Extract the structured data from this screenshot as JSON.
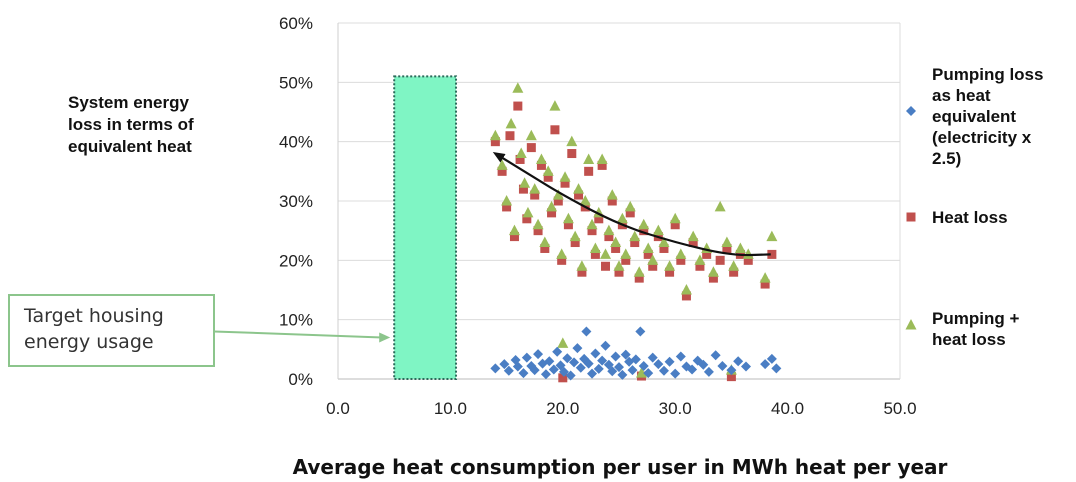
{
  "chart_data": {
    "type": "scatter",
    "title": "",
    "xlabel": "Average heat consumption per user in MWh heat per year",
    "ylabel_lines": [
      "System energy",
      "loss in terms of",
      "equivalent heat"
    ],
    "xlim": [
      0,
      50
    ],
    "ylim": [
      0,
      60
    ],
    "x_ticks": [
      "0.0",
      "10.0",
      "20.0",
      "30.0",
      "40.0",
      "50.0"
    ],
    "y_ticks": [
      "0%",
      "10%",
      "20%",
      "30%",
      "40%",
      "50%",
      "60%"
    ],
    "grid": true,
    "legend_position": "right",
    "legend": [
      {
        "lines": [
          "Pumping loss",
          "as heat",
          "equivalent",
          "(electricity x",
          "2.5)"
        ],
        "color": "#4a7ec4",
        "marker": "diamond"
      },
      {
        "lines": [
          "Heat loss"
        ],
        "color": "#c0504d",
        "marker": "square"
      },
      {
        "lines": [
          "Pumping +",
          "heat loss"
        ],
        "color": "#9bbb59",
        "marker": "triangle"
      }
    ],
    "target_band": {
      "x_range": [
        5,
        10.5
      ],
      "y_range": [
        0,
        51
      ],
      "color": "#7ff5c4"
    },
    "annotation": {
      "lines": [
        "Target housing",
        "energy usage"
      ],
      "points_to": [
        5,
        7
      ]
    },
    "trend_arrow": {
      "color": "#111111",
      "points": [
        [
          38.5,
          21
        ],
        [
          35,
          20.8
        ],
        [
          30,
          23
        ],
        [
          25,
          26
        ],
        [
          20,
          31
        ],
        [
          17,
          34.5
        ],
        [
          14,
          38
        ]
      ]
    },
    "series": [
      {
        "name": "Pumping loss as heat equivalent (electricity x 2.5)",
        "marker": "diamond",
        "color": "#4a7ec4",
        "points": [
          [
            14,
            1.8
          ],
          [
            14.8,
            2.5
          ],
          [
            15.2,
            1.4
          ],
          [
            15.8,
            3.2
          ],
          [
            16,
            2.1
          ],
          [
            16.5,
            1
          ],
          [
            16.8,
            3.6
          ],
          [
            17.2,
            2.2
          ],
          [
            17.5,
            1.5
          ],
          [
            17.8,
            4.2
          ],
          [
            18.2,
            2.6
          ],
          [
            18.5,
            0.8
          ],
          [
            18.8,
            3
          ],
          [
            19.2,
            1.6
          ],
          [
            19.5,
            4.6
          ],
          [
            19.8,
            2.3
          ],
          [
            20.1,
            1.2
          ],
          [
            20.4,
            3.5
          ],
          [
            20.7,
            0.6
          ],
          [
            21,
            2.8
          ],
          [
            21.3,
            5.2
          ],
          [
            21.6,
            1.9
          ],
          [
            21.9,
            3.4
          ],
          [
            22.1,
            8
          ],
          [
            22.3,
            2.6
          ],
          [
            22.6,
            0.9
          ],
          [
            22.9,
            4.3
          ],
          [
            23.2,
            1.7
          ],
          [
            23.5,
            3.1
          ],
          [
            23.8,
            5.6
          ],
          [
            24.1,
            2.4
          ],
          [
            24.4,
            1.3
          ],
          [
            24.7,
            3.8
          ],
          [
            25,
            2
          ],
          [
            25.3,
            0.7
          ],
          [
            25.6,
            4.1
          ],
          [
            25.9,
            2.9
          ],
          [
            26.2,
            1.5
          ],
          [
            26.5,
            3.3
          ],
          [
            26.9,
            8
          ],
          [
            27.2,
            2.2
          ],
          [
            27.6,
            1
          ],
          [
            28,
            3.6
          ],
          [
            28.5,
            2.5
          ],
          [
            29,
            1.4
          ],
          [
            29.5,
            2.9
          ],
          [
            30,
            0.9
          ],
          [
            30.5,
            3.8
          ],
          [
            31,
            2.1
          ],
          [
            31.5,
            1.6
          ],
          [
            32,
            3.1
          ],
          [
            32.5,
            2.4
          ],
          [
            33,
            1.2
          ],
          [
            33.6,
            4
          ],
          [
            34.2,
            2.2
          ],
          [
            35,
            1.5
          ],
          [
            35.6,
            3
          ],
          [
            36.3,
            2.1
          ],
          [
            38,
            2.5
          ],
          [
            38.6,
            3.4
          ],
          [
            39,
            1.8
          ]
        ]
      },
      {
        "name": "Heat loss",
        "marker": "square",
        "color": "#c0504d",
        "points": [
          [
            14,
            40
          ],
          [
            14.6,
            35
          ],
          [
            15,
            29
          ],
          [
            15.3,
            41
          ],
          [
            15.7,
            24
          ],
          [
            16,
            46
          ],
          [
            16.2,
            37
          ],
          [
            16.5,
            32
          ],
          [
            16.8,
            27
          ],
          [
            17.2,
            39
          ],
          [
            17.5,
            31
          ],
          [
            17.8,
            25
          ],
          [
            18.1,
            36
          ],
          [
            18.4,
            22
          ],
          [
            18.7,
            34
          ],
          [
            19,
            28
          ],
          [
            19.3,
            42
          ],
          [
            19.6,
            30
          ],
          [
            19.9,
            20
          ],
          [
            20.2,
            33
          ],
          [
            20.5,
            26
          ],
          [
            20.8,
            38
          ],
          [
            21.1,
            23
          ],
          [
            21.4,
            31
          ],
          [
            21.7,
            18
          ],
          [
            22,
            29
          ],
          [
            22.3,
            35
          ],
          [
            22.6,
            25
          ],
          [
            22.9,
            21
          ],
          [
            23.2,
            27
          ],
          [
            23.5,
            36
          ],
          [
            23.8,
            19
          ],
          [
            24.1,
            24
          ],
          [
            24.4,
            30
          ],
          [
            24.7,
            22
          ],
          [
            25,
            18
          ],
          [
            25.3,
            26
          ],
          [
            25.6,
            20
          ],
          [
            26,
            28
          ],
          [
            26.4,
            23
          ],
          [
            26.8,
            17
          ],
          [
            27.2,
            25
          ],
          [
            27.6,
            21
          ],
          [
            28,
            19
          ],
          [
            28.5,
            24
          ],
          [
            29,
            22
          ],
          [
            29.5,
            18
          ],
          [
            30,
            26
          ],
          [
            30.5,
            20
          ],
          [
            31,
            14
          ],
          [
            31.6,
            23
          ],
          [
            32.2,
            19
          ],
          [
            32.8,
            21
          ],
          [
            33.4,
            17
          ],
          [
            34,
            20
          ],
          [
            34.6,
            22
          ],
          [
            35.2,
            18
          ],
          [
            35.8,
            21
          ],
          [
            36.5,
            20
          ],
          [
            38,
            16
          ],
          [
            38.6,
            21
          ],
          [
            20,
            0.2
          ],
          [
            35,
            0.4
          ],
          [
            27,
            0.5
          ]
        ]
      },
      {
        "name": "Pumping + heat loss",
        "marker": "triangle",
        "color": "#9bbb59",
        "points": [
          [
            14,
            41
          ],
          [
            14.6,
            36
          ],
          [
            15,
            30
          ],
          [
            15.4,
            43
          ],
          [
            15.7,
            25
          ],
          [
            16,
            49
          ],
          [
            16.3,
            38
          ],
          [
            16.6,
            33
          ],
          [
            16.9,
            28
          ],
          [
            17.2,
            41
          ],
          [
            17.5,
            32
          ],
          [
            17.8,
            26
          ],
          [
            18.1,
            37
          ],
          [
            18.4,
            23
          ],
          [
            18.7,
            35
          ],
          [
            19,
            29
          ],
          [
            19.3,
            46
          ],
          [
            19.6,
            31
          ],
          [
            19.9,
            21
          ],
          [
            20.2,
            34
          ],
          [
            20.5,
            27
          ],
          [
            20.8,
            40
          ],
          [
            21.1,
            24
          ],
          [
            21.4,
            32
          ],
          [
            21.7,
            19
          ],
          [
            22,
            30
          ],
          [
            22.3,
            37
          ],
          [
            22.6,
            26
          ],
          [
            22.9,
            22
          ],
          [
            23.2,
            28
          ],
          [
            23.5,
            37
          ],
          [
            23.8,
            21
          ],
          [
            24.1,
            25
          ],
          [
            24.4,
            31
          ],
          [
            24.7,
            23
          ],
          [
            25,
            19
          ],
          [
            25.3,
            27
          ],
          [
            25.6,
            21
          ],
          [
            26,
            29
          ],
          [
            26.4,
            24
          ],
          [
            26.8,
            18
          ],
          [
            27.2,
            26
          ],
          [
            27.6,
            22
          ],
          [
            28,
            20
          ],
          [
            28.5,
            25
          ],
          [
            29,
            23
          ],
          [
            29.5,
            19
          ],
          [
            30,
            27
          ],
          [
            30.5,
            21
          ],
          [
            31,
            15
          ],
          [
            31.6,
            24
          ],
          [
            32.2,
            20
          ],
          [
            32.8,
            22
          ],
          [
            33.4,
            18
          ],
          [
            34,
            29
          ],
          [
            34.6,
            23
          ],
          [
            35.2,
            19
          ],
          [
            35.8,
            22
          ],
          [
            36.5,
            21
          ],
          [
            38,
            17
          ],
          [
            38.6,
            24
          ],
          [
            20,
            6
          ],
          [
            35,
            1.5
          ],
          [
            27,
            1
          ]
        ]
      }
    ]
  }
}
